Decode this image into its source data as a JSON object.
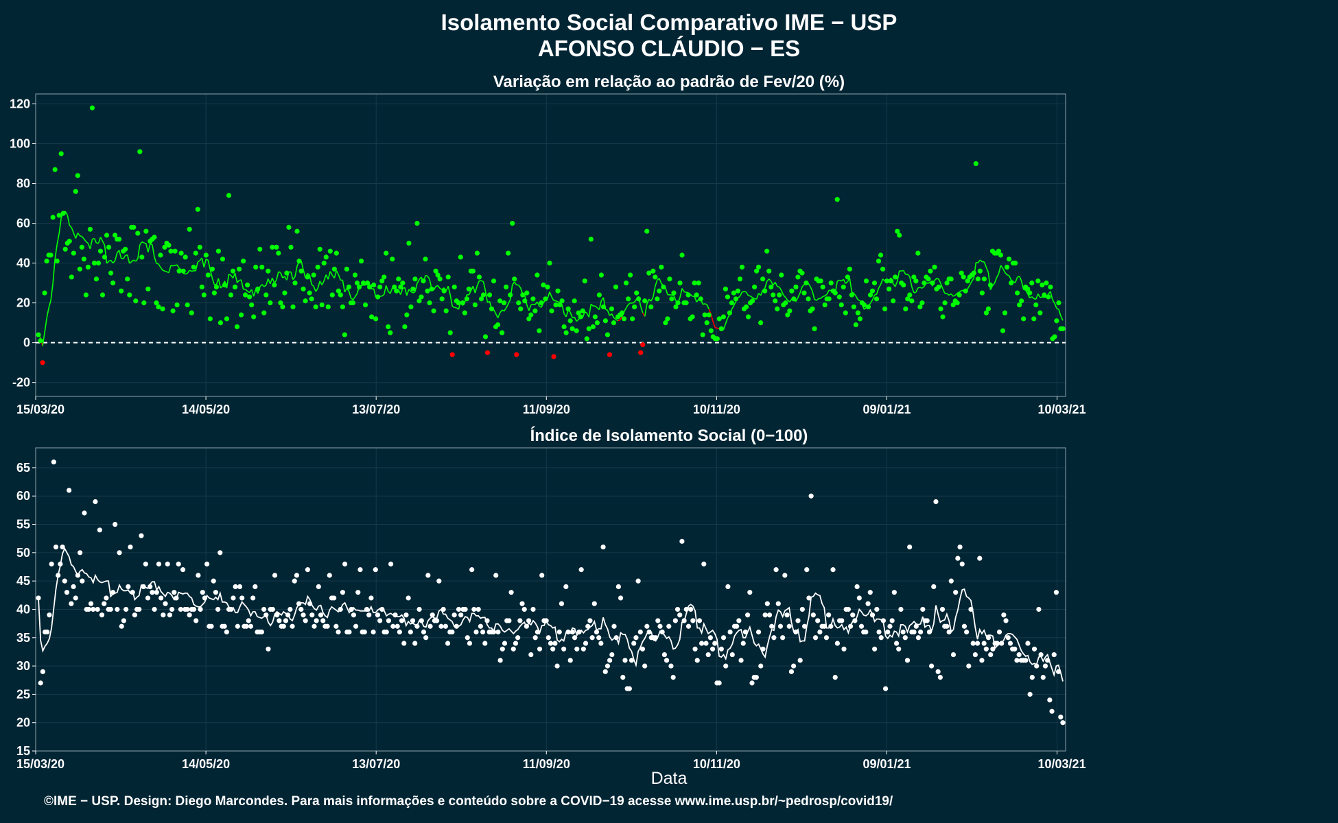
{
  "title_line1": "Isolamento Social Comparativo IME − USP",
  "title_line2": "AFONSO CLÁUDIO − ES",
  "footer": "©IME − USP. Design: Diego Marcondes. Para mais informações e conteúdo sobre a COVID−19 acesse www.ime.usp.br/~pedrosp/covid19/",
  "colors": {
    "background": "#022534",
    "positive": "#00ff00",
    "negative": "#ff0000",
    "index": "#ffffff",
    "grid": "#17394a",
    "frame": "#8fa3ad"
  },
  "chart_data": [
    {
      "type": "scatter",
      "title": "Variação em relação ao padrão de Fev/20 (%)",
      "xlabel": "",
      "ylabel": "",
      "x_range": [
        "2020-03-15",
        "2021-03-13"
      ],
      "x_ticks": [
        "15/03/20",
        "14/05/20",
        "13/07/20",
        "11/09/20",
        "10/11/20",
        "09/01/21",
        "10/03/21"
      ],
      "ylim": [
        -27,
        125
      ],
      "y_ticks": [
        -20,
        0,
        20,
        40,
        60,
        80,
        100,
        120
      ],
      "reference_line": 0,
      "colors_by_sign": {
        "positive": "#00ff00",
        "negative": "#ff0000"
      },
      "series": [
        {
          "kind": "points",
          "values": [
            4,
            1,
            -10,
            25,
            41,
            44,
            44,
            63,
            87,
            41,
            64,
            95,
            65,
            47,
            50,
            51,
            33,
            45,
            76,
            84,
            37,
            48,
            42,
            24,
            38,
            57,
            118,
            40,
            32,
            40,
            46,
            24,
            43,
            54,
            48,
            35,
            30,
            54,
            52,
            52,
            26,
            46,
            47,
            32,
            24,
            58,
            58,
            21,
            55,
            96,
            43,
            20,
            56,
            27,
            51,
            52,
            53,
            20,
            18,
            44,
            17,
            48,
            50,
            49,
            46,
            16,
            46,
            19,
            36,
            45,
            36,
            43,
            19,
            57,
            15,
            38,
            45,
            67,
            48,
            28,
            24,
            44,
            34,
            12,
            37,
            25,
            28,
            46,
            10,
            42,
            29,
            12,
            74,
            24,
            36,
            28,
            8,
            37,
            14,
            41,
            24,
            29,
            23,
            19,
            13,
            38,
            27,
            47,
            38,
            15,
            24,
            36,
            20,
            48,
            29,
            48,
            45,
            20,
            18,
            25,
            35,
            58,
            48,
            18,
            30,
            56,
            41,
            36,
            27,
            21,
            33,
            25,
            22,
            34,
            18,
            38,
            47,
            19,
            40,
            43,
            18,
            46,
            24,
            37,
            45,
            26,
            24,
            18,
            4,
            37,
            28,
            20,
            20,
            34,
            30,
            28,
            41,
            30,
            19,
            30,
            28,
            13,
            29,
            12,
            23,
            28,
            31,
            33,
            45,
            8,
            5,
            42,
            28,
            26,
            32,
            28,
            30,
            8,
            14,
            50,
            18,
            27,
            32,
            60,
            21,
            23,
            31,
            42,
            26,
            20,
            27,
            16,
            36,
            34,
            32,
            22,
            26,
            16,
            33,
            5,
            -6,
            28,
            21,
            20,
            43,
            20,
            15,
            22,
            27,
            36,
            36,
            19,
            45,
            33,
            22,
            24,
            3,
            -5,
            24,
            17,
            31,
            8,
            9,
            21,
            5,
            20,
            28,
            45,
            24,
            60,
            32,
            -6,
            20,
            17,
            24,
            21,
            25,
            12,
            14,
            22,
            16,
            34,
            6,
            20,
            29,
            22,
            28,
            40,
            16,
            -7,
            19,
            26,
            19,
            21,
            8,
            5,
            17,
            11,
            7,
            21,
            6,
            15,
            13,
            16,
            31,
            2,
            7,
            52,
            8,
            13,
            10,
            24,
            34,
            18,
            11,
            4,
            -6,
            17,
            10,
            28,
            13,
            14,
            15,
            12,
            30,
            22,
            34,
            12,
            18,
            25,
            22,
            -5,
            -1,
            21,
            56,
            35,
            18,
            36,
            33,
            22,
            26,
            38,
            28,
            10,
            12,
            32,
            22,
            25,
            18,
            20,
            30,
            44,
            20,
            20,
            24,
            12,
            13,
            30,
            24,
            30,
            22,
            4,
            14,
            10,
            14,
            6,
            3,
            2,
            2,
            12,
            7,
            13,
            27,
            23,
            15,
            20,
            25,
            22,
            26,
            32,
            38,
            17,
            18,
            13,
            20,
            21,
            28,
            36,
            38,
            10,
            32,
            26,
            46,
            36,
            28,
            24,
            21,
            17,
            24,
            34,
            19,
            20,
            14,
            16,
            26,
            22,
            28,
            33,
            36,
            35,
            25,
            30,
            22,
            16,
            17,
            7,
            32,
            31,
            31,
            28,
            19,
            22,
            22,
            30,
            26,
            25,
            72,
            23,
            19,
            28,
            15,
            33,
            37,
            24,
            18,
            9,
            15,
            12,
            20,
            19,
            31,
            18,
            24,
            26,
            30,
            22,
            41,
            44,
            37,
            17,
            31,
            27,
            31,
            21,
            33,
            56,
            54,
            30,
            29,
            17,
            22,
            24,
            21,
            33,
            31,
            45,
            18,
            20,
            30,
            33,
            32,
            36,
            30,
            38,
            27,
            28,
            17,
            13,
            20,
            30,
            32,
            32,
            19,
            21,
            20,
            24,
            35,
            33,
            26,
            31,
            33,
            34,
            35,
            90,
            32,
            36,
            25,
            32,
            15,
            17,
            29,
            46,
            45,
            45,
            46,
            44,
            6,
            15,
            38,
            42,
            30,
            40,
            40,
            25,
            19,
            21,
            12,
            28,
            27,
            25,
            30,
            12,
            19,
            31,
            15,
            29,
            24,
            30,
            23,
            28,
            2,
            3,
            11,
            20,
            7,
            7
          ]
        }
      ]
    },
    {
      "type": "scatter",
      "title": "Índice de Isolamento Social (0−100)",
      "xlabel": "Data",
      "ylabel": "",
      "x_range": [
        "2020-03-15",
        "2021-03-13"
      ],
      "x_ticks": [
        "15/03/20",
        "14/05/20",
        "13/07/20",
        "11/09/20",
        "10/11/20",
        "09/01/21",
        "10/03/21"
      ],
      "ylim": [
        15,
        68.5
      ],
      "y_ticks": [
        15,
        20,
        25,
        30,
        35,
        40,
        45,
        50,
        55,
        60,
        65
      ],
      "series": [
        {
          "kind": "points",
          "values": [
            42,
            27,
            29,
            36,
            36,
            39,
            48,
            66,
            51,
            46,
            48,
            51,
            45,
            43,
            61,
            41,
            44,
            42,
            46,
            50,
            45,
            57,
            40,
            40,
            41,
            40,
            59,
            40,
            54,
            39,
            41,
            42,
            40,
            40,
            43,
            55,
            40,
            50,
            37,
            38,
            40,
            44,
            51,
            43,
            39,
            40,
            40,
            53,
            44,
            48,
            42,
            44,
            43,
            40,
            43,
            48,
            42,
            39,
            41,
            48,
            39,
            40,
            43,
            42,
            48,
            40,
            47,
            40,
            40,
            39,
            40,
            40,
            38,
            46,
            40,
            43,
            42,
            48,
            37,
            37,
            45,
            43,
            40,
            50,
            37,
            37,
            36,
            40,
            40,
            42,
            44,
            37,
            44,
            42,
            37,
            37,
            38,
            37,
            42,
            44,
            36,
            36,
            36,
            40,
            39,
            33,
            40,
            40,
            46,
            39,
            38,
            37,
            37,
            38,
            39,
            40,
            37,
            45,
            46,
            41,
            40,
            39,
            38,
            47,
            41,
            39,
            37,
            38,
            44,
            39,
            38,
            37,
            37,
            46,
            42,
            42,
            37,
            36,
            40,
            43,
            48,
            36,
            36,
            40,
            39,
            37,
            43,
            47,
            36,
            36,
            40,
            39,
            42,
            36,
            47,
            39,
            38,
            40,
            36,
            36,
            38,
            48,
            37,
            39,
            37,
            36,
            38,
            34,
            39,
            42,
            36,
            38,
            34,
            37,
            40,
            38,
            36,
            35,
            46,
            37,
            39,
            38,
            38,
            45,
            37,
            40,
            37,
            34,
            36,
            36,
            39,
            37,
            40,
            39,
            40,
            40,
            35,
            34,
            47,
            40,
            36,
            40,
            37,
            36,
            34,
            38,
            36,
            36,
            36,
            46,
            36,
            31,
            33,
            34,
            38,
            38,
            43,
            33,
            34,
            35,
            38,
            41,
            40,
            37,
            38,
            32,
            40,
            35,
            36,
            33,
            46,
            38,
            38,
            35,
            34,
            33,
            34,
            30,
            36,
            41,
            33,
            44,
            36,
            31,
            36,
            35,
            33,
            36,
            47,
            33,
            34,
            37,
            38,
            35,
            41,
            36,
            35,
            34,
            51,
            29,
            30,
            31,
            32,
            37,
            35,
            44,
            42,
            28,
            31,
            26,
            26,
            31,
            34,
            35,
            45,
            36,
            33,
            30,
            37,
            36,
            35,
            35,
            35,
            38,
            37,
            36,
            32,
            31,
            37,
            30,
            28,
            38,
            40,
            39,
            52,
            38,
            40,
            37,
            40,
            38,
            33,
            31,
            38,
            34,
            48,
            34,
            32,
            35,
            33,
            34,
            27,
            27,
            33,
            35,
            30,
            44,
            36,
            32,
            37,
            37,
            38,
            31,
            34,
            36,
            39,
            43,
            27,
            28,
            28,
            36,
            30,
            33,
            39,
            41,
            39,
            37,
            35,
            47,
            41,
            37,
            35,
            46,
            39,
            37,
            29,
            30,
            36,
            38,
            31,
            40,
            37,
            47,
            42,
            60,
            39,
            35,
            38,
            36,
            37,
            37,
            35,
            39,
            37,
            47,
            28,
            34,
            38,
            38,
            33,
            40,
            40,
            37,
            39,
            38,
            44,
            42,
            37,
            36,
            36,
            41,
            43,
            39,
            33,
            40,
            36,
            35,
            38,
            26,
            36,
            37,
            38,
            43,
            34,
            33,
            40,
            36,
            35,
            31,
            51,
            36,
            36,
            37,
            35,
            36,
            40,
            38,
            38,
            36,
            30,
            44,
            59,
            29,
            28,
            40,
            37,
            37,
            36,
            45,
            32,
            43,
            49,
            51,
            48,
            37,
            36,
            30,
            40,
            34,
            32,
            34,
            49,
            31,
            34,
            33,
            35,
            32,
            33,
            34,
            34,
            36,
            34,
            39,
            38,
            35,
            34,
            33,
            33,
            31,
            32,
            31,
            31,
            31,
            34,
            25,
            28,
            33,
            30,
            40,
            32,
            28,
            30,
            31,
            24,
            22,
            32,
            43,
            29,
            21,
            20
          ]
        }
      ]
    }
  ]
}
